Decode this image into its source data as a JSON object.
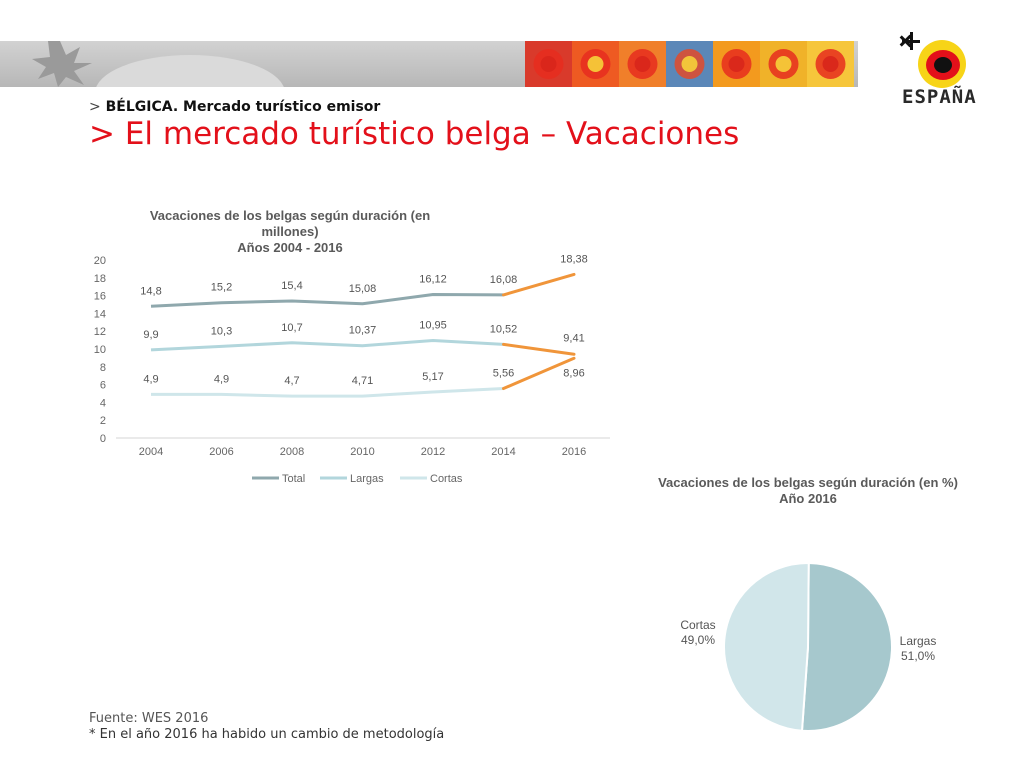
{
  "header": {
    "kicker_prefix": ">",
    "kicker": "BÉLGICA. Mercado turístico emisor",
    "title": "> El mercado turístico belga – Vacaciones",
    "logo_text": "ESPAÑA"
  },
  "banner": {
    "tile_colors": [
      "#d93a2b",
      "#ee5a22",
      "#f07f2a",
      "#5b87b8",
      "#f39a1e",
      "#f0b229",
      "#f6c63b"
    ],
    "tile_icons": [
      "sun-tile-icon",
      "sun-tile-icon",
      "sun-face-tile-icon",
      "bug-tile-icon",
      "square-tile-icon",
      "sun-tile-icon",
      "sun-tile-icon"
    ]
  },
  "colors": {
    "total": "#8fa8ad",
    "largas": "#b2d6dc",
    "cortas": "#cfe6ea",
    "highlight": "#f0953a",
    "pie_largas": "#a6c8cd",
    "pie_cortas": "#d1e6ea",
    "accent_red": "#e3101a"
  },
  "chart_data": [
    {
      "type": "line",
      "title": "Vacaciones de los belgas según duración (en millones)",
      "subtitle": "Años 2004 - 2016",
      "categories": [
        "2004",
        "2006",
        "2008",
        "2010",
        "2012",
        "2014",
        "2016"
      ],
      "ylim": [
        0,
        20
      ],
      "yticks": [
        0,
        2,
        4,
        6,
        8,
        10,
        12,
        14,
        16,
        18,
        20
      ],
      "grid": false,
      "legend": "bottom",
      "highlight_last_segment": true,
      "series": [
        {
          "name": "Total",
          "values": [
            14.8,
            15.2,
            15.4,
            15.08,
            16.12,
            16.08,
            18.38
          ],
          "labels": [
            "14,8",
            "15,2",
            "15,4",
            "15,08",
            "16,12",
            "16,08",
            "18,38"
          ]
        },
        {
          "name": "Largas",
          "values": [
            9.9,
            10.3,
            10.7,
            10.37,
            10.95,
            10.52,
            9.41
          ],
          "labels": [
            "9,9",
            "10,3",
            "10,7",
            "10,37",
            "10,95",
            "10,52",
            "9,41"
          ]
        },
        {
          "name": "Cortas",
          "values": [
            4.9,
            4.9,
            4.7,
            4.71,
            5.17,
            5.56,
            8.96
          ],
          "labels": [
            "4,9",
            "4,9",
            "4,7",
            "4,71",
            "5,17",
            "5,56",
            "8,96"
          ]
        }
      ]
    },
    {
      "type": "pie",
      "title": "Vacaciones de los belgas según duración (en %)",
      "subtitle": "Año 2016",
      "slices": [
        {
          "name": "Largas",
          "value": 51.0,
          "label": "51,0%"
        },
        {
          "name": "Cortas",
          "value": 49.0,
          "label": "49,0%"
        }
      ]
    }
  ],
  "footer": {
    "source": "Fuente: WES 2016",
    "note": "* En el año 2016 ha habido un cambio de metodología"
  }
}
